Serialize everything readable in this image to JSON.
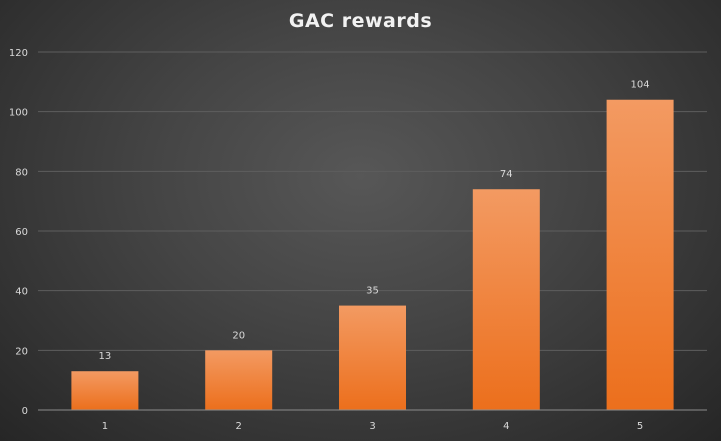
{
  "chart_data": {
    "type": "bar",
    "title": "GAC rewards",
    "categories": [
      "1",
      "2",
      "3",
      "4",
      "5"
    ],
    "values": [
      13,
      20,
      35,
      74,
      104
    ],
    "xlabel": "",
    "ylabel": "",
    "ylim": [
      0,
      120
    ],
    "yticks": [
      0,
      20,
      40,
      60,
      80,
      100,
      120
    ],
    "grid": true,
    "data_labels": true,
    "legend": "none",
    "colors": {
      "bar_top": "#f39a62",
      "bar_bottom": "#ec6f1c",
      "grid": "#5e5e5e",
      "axis": "#8c8c8c",
      "text": "#d9d9d9"
    }
  }
}
